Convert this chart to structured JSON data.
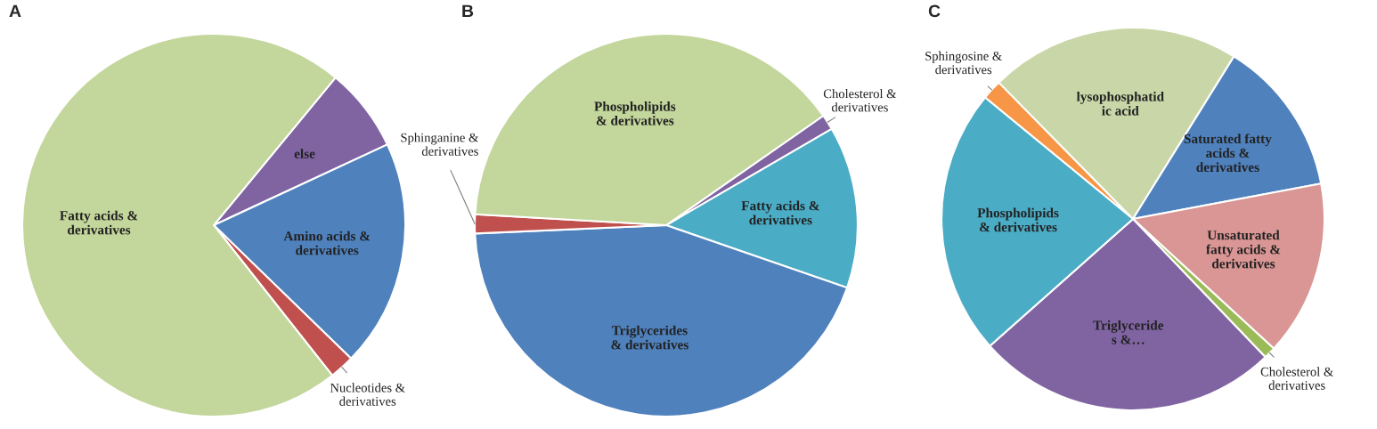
{
  "chart_data": [
    {
      "type": "pie",
      "title": "A",
      "categories": [
        "else",
        "Amino acids &\nderivatives",
        "Nucleotides &\nderivatives",
        "Fatty acids &\nderivatives"
      ],
      "values": [
        7.1,
        19.2,
        2.1,
        71.6
      ],
      "colors": [
        "#8064a2",
        "#4f81bd",
        "#c0504d",
        "#c3d69b"
      ]
    },
    {
      "type": "pie",
      "title": "B",
      "categories": [
        "Cholesterol &\nderivatives",
        "Fatty acids &\nderivatives",
        "Triglycerides\n& derivatives",
        "Sphinganine &\nderivatives",
        "Phospholipids\n& derivatives"
      ],
      "values": [
        1.3,
        13.7,
        44.0,
        1.6,
        39.4
      ],
      "colors": [
        "#8064a2",
        "#4bacc6",
        "#4f81bd",
        "#c0504d",
        "#c3d69b"
      ]
    },
    {
      "type": "pie",
      "title": "C",
      "categories": [
        "Sphingosine &\nderivatives",
        "lysophosphatid\nic acid",
        "Saturated fatty\nacids &\nderivatives",
        "Unsaturated\nfatty acids &\nderivatives",
        "Cholesterol &\nderivatives",
        "Triglyceride\ns &…",
        "Phospholipids\n& derivatives"
      ],
      "values": [
        1.7,
        21.2,
        13.2,
        14.8,
        1.0,
        25.6,
        22.5
      ],
      "colors": [
        "#f79646",
        "#c9d7a8",
        "#4f81bd",
        "#d99694",
        "#9bbb59",
        "#8064a2",
        "#4bacc6"
      ]
    }
  ]
}
